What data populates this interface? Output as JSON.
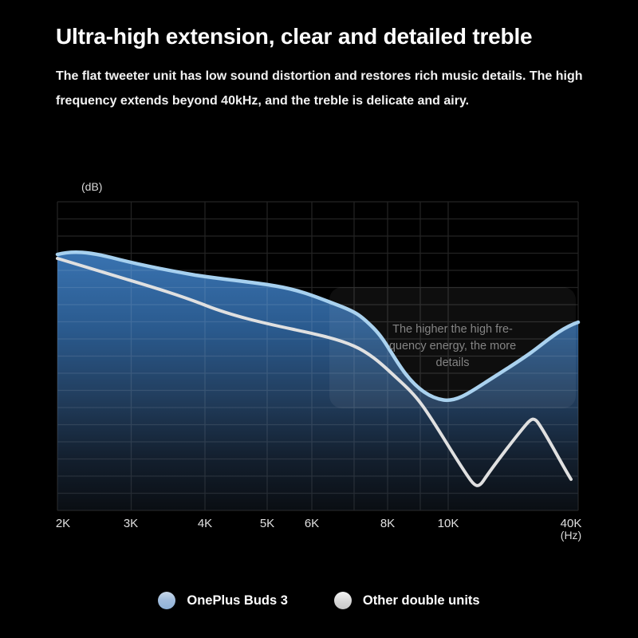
{
  "header": {
    "title": "Ultra-high extension, clear and detailed treble",
    "subtitle": "The flat tweeter unit has low sound distortion and restores rich music details. The high\nfrequency extends beyond 40kHz, and the treble is delicate and airy."
  },
  "chart": {
    "y_axis_unit": "(dB)",
    "x_axis_unit": "(Hz)",
    "x_ticks": [
      "2K",
      "3K",
      "4K",
      "5K",
      "6K",
      "8K",
      "10K",
      "40K"
    ],
    "annotation": {
      "text": "The higher the high fre-\nquency energy, the more\ndetails"
    },
    "colors": {
      "background": "#000000",
      "grid_line": "#232323",
      "buds3_line": "#a6d0ef",
      "buds3_fill_top": "#3973b1",
      "buds3_fill_bottom": "#0a0e13",
      "other_line": "#e0e0e0",
      "annotation_text": "#848484"
    }
  },
  "legend": {
    "items": [
      {
        "key": "buds",
        "label": "OnePlus Buds 3",
        "dot_color": "#a3bedd"
      },
      {
        "key": "other",
        "label": "Other double units",
        "dot_color": "#d6d6d6"
      }
    ]
  },
  "chart_data": {
    "type": "area",
    "title": "Treble frequency response comparison",
    "xlabel": "(Hz)",
    "ylabel": "(dB)",
    "x_scale": "log-like, ticks 2K-40K Hz",
    "y_scale": "unlabeled dB grid divisions (0 = curve start level, 1 division per gridline row)",
    "grid": true,
    "legend_position": "bottom-center",
    "annotation": "The higher the high frequency energy, the more details",
    "series": [
      {
        "name": "OnePlus Buds 3",
        "style": "light-blue line with blue gradient area fill",
        "x_khz": [
          2,
          3,
          4,
          5,
          6,
          7,
          8,
          9,
          9.7,
          10,
          12,
          19,
          25,
          30,
          35,
          40
        ],
        "values_db": [
          0.0,
          -0.5,
          -1.3,
          -1.8,
          -2.5,
          -3.4,
          -5.9,
          -8.0,
          -8.5,
          -8.4,
          -7.5,
          -6.5,
          -5.7,
          -4.7,
          -4.0,
          -3.9
        ]
      },
      {
        "name": "Other double units",
        "style": "white line, no fill",
        "x_khz": [
          2,
          3,
          4,
          5,
          6,
          7,
          8,
          9,
          10,
          13,
          18,
          25,
          32,
          38
        ],
        "values_db": [
          -0.2,
          -1.5,
          -3.0,
          -4.0,
          -4.6,
          -5.3,
          -6.8,
          -8.6,
          -10.8,
          -13.3,
          -11.2,
          -9.6,
          -12.0,
          -13.1
        ]
      }
    ]
  }
}
